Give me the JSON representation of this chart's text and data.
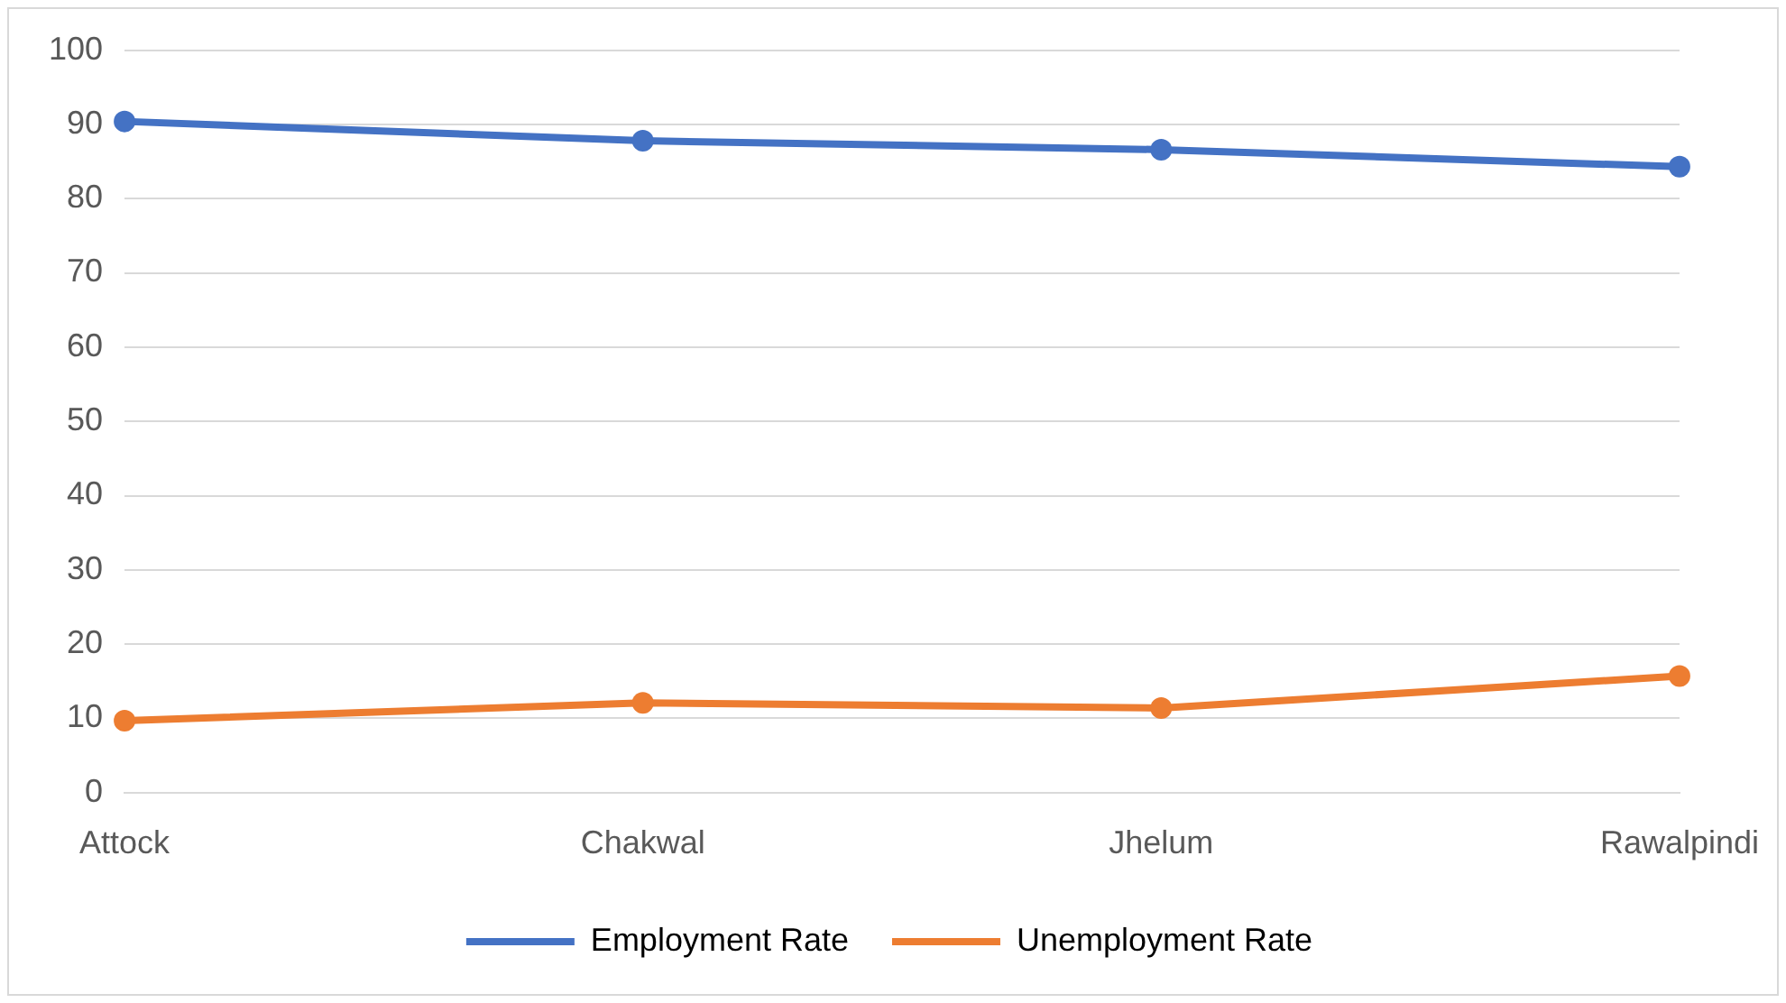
{
  "chart_data": {
    "type": "line",
    "categories": [
      "Attock",
      "Chakwal",
      "Jhelum",
      "Rawalpindi"
    ],
    "series": [
      {
        "name": "Employment Rate",
        "color": "#4472c4",
        "values": [
          90.4,
          87.8,
          86.6,
          84.3
        ]
      },
      {
        "name": "Unemployment Rate",
        "color": "#ed7d31",
        "values": [
          9.7,
          12.1,
          11.4,
          15.7
        ]
      }
    ],
    "ylim": [
      0,
      100
    ],
    "yticks": [
      0,
      10,
      20,
      30,
      40,
      50,
      60,
      70,
      80,
      90,
      100
    ],
    "grid": "y",
    "legend": "bottom",
    "marker": "circle",
    "line_style": "solid"
  }
}
